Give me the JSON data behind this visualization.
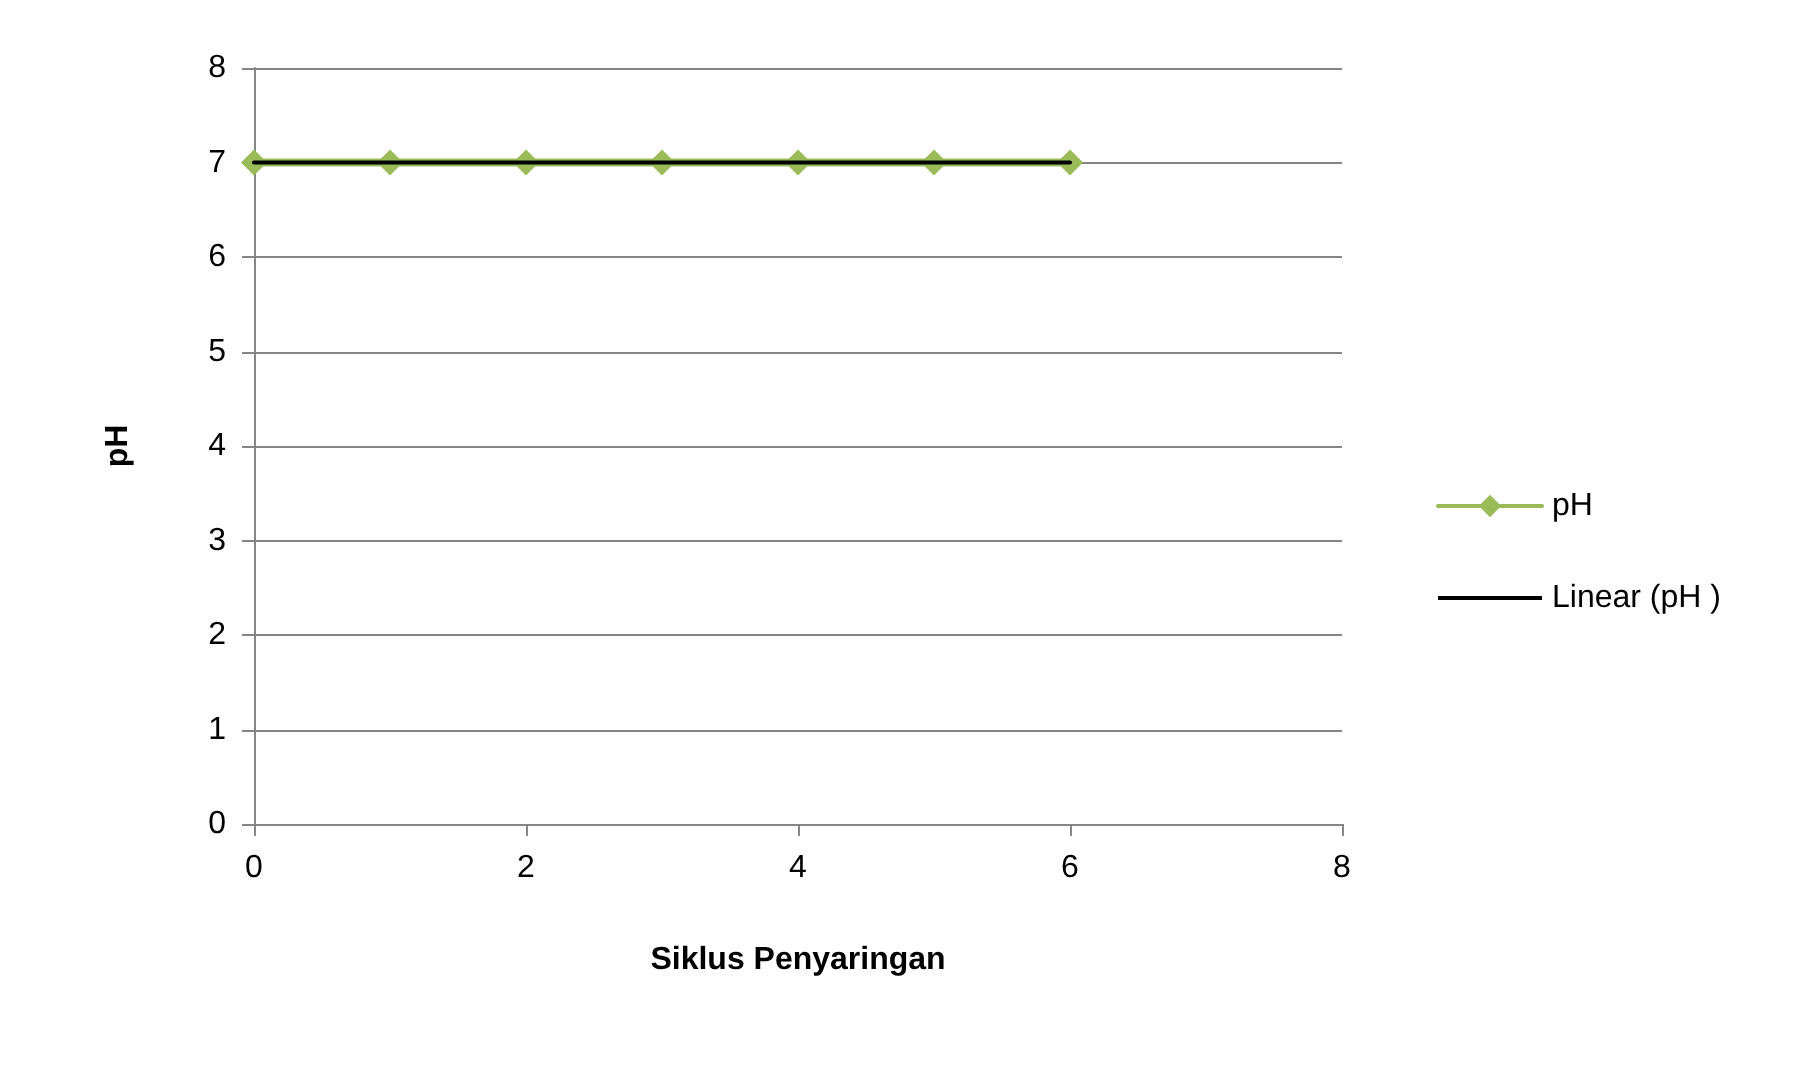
{
  "chart_data": {
    "type": "line",
    "xlabel": "Siklus Penyaringan",
    "ylabel": "pH",
    "x": [
      0,
      1,
      2,
      3,
      4,
      5,
      6
    ],
    "xlim": [
      0,
      8
    ],
    "xticks": [
      0,
      2,
      4,
      6,
      8
    ],
    "ylim": [
      0,
      8
    ],
    "yticks": [
      0,
      1,
      2,
      3,
      4,
      5,
      6,
      7,
      8
    ],
    "grid": "y",
    "legend": "right",
    "line_style": "solid",
    "series": [
      {
        "name": "pH",
        "color": "#9bbb59",
        "marker": "diamond",
        "values": [
          7,
          7,
          7,
          7,
          7,
          7,
          7
        ]
      },
      {
        "name": "Linear (pH )",
        "color": "#000000",
        "marker": "none",
        "x": [
          0,
          6
        ],
        "values": [
          7,
          7
        ]
      }
    ]
  }
}
